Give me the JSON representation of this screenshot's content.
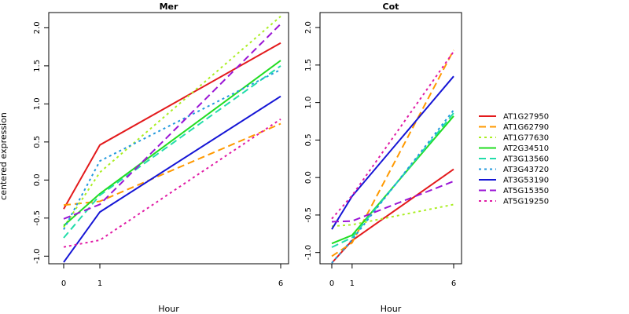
{
  "chart_data": {
    "type": "line",
    "ylabel": "centered expression",
    "legend_position": "right",
    "series_styles": [
      {
        "name": "AT1G27950",
        "color": "#e31a1c",
        "dash": "solid"
      },
      {
        "name": "AT1G62790",
        "color": "#ff9900",
        "dash": "dashed"
      },
      {
        "name": "AT1G77630",
        "color": "#aaee22",
        "dash": "dotted"
      },
      {
        "name": "AT2G34510",
        "color": "#22dd22",
        "dash": "solid"
      },
      {
        "name": "AT3G13560",
        "color": "#22ddaa",
        "dash": "dashed"
      },
      {
        "name": "AT3G43720",
        "color": "#2299dd",
        "dash": "dotted"
      },
      {
        "name": "AT3G53190",
        "color": "#1515d5",
        "dash": "solid"
      },
      {
        "name": "AT5G15350",
        "color": "#9a15d5",
        "dash": "dashed"
      },
      {
        "name": "AT5G19250",
        "color": "#e01aa5",
        "dash": "dotted"
      }
    ],
    "panels": [
      {
        "title": "Mer",
        "xlabel": "Hour",
        "categories": [
          "0",
          "1",
          "6"
        ],
        "ylim": [
          -1.1,
          2.2
        ],
        "yticks": [
          -1.0,
          -0.5,
          0.0,
          0.5,
          1.0,
          1.5,
          2.0
        ],
        "series": [
          {
            "name": "AT1G27950",
            "values": [
              -0.38,
              0.46,
              1.8
            ]
          },
          {
            "name": "AT1G62790",
            "values": [
              -0.33,
              -0.28,
              0.74
            ]
          },
          {
            "name": "AT1G77630",
            "values": [
              -0.62,
              0.1,
              2.15
            ]
          },
          {
            "name": "AT2G34510",
            "values": [
              -0.6,
              -0.18,
              1.57
            ]
          },
          {
            "name": "AT3G13560",
            "values": [
              -0.76,
              -0.2,
              1.5
            ]
          },
          {
            "name": "AT3G43720",
            "values": [
              -0.65,
              0.25,
              1.45
            ]
          },
          {
            "name": "AT3G53190",
            "values": [
              -1.08,
              -0.42,
              1.1
            ]
          },
          {
            "name": "AT5G15350",
            "values": [
              -0.51,
              -0.32,
              2.05
            ]
          },
          {
            "name": "AT5G19250",
            "values": [
              -0.88,
              -0.79,
              0.8
            ]
          }
        ]
      },
      {
        "title": "Cot",
        "xlabel": "Hour",
        "categories": [
          "0",
          "1",
          "6"
        ],
        "ylim": [
          -1.15,
          2.2
        ],
        "yticks": [
          -1.0,
          -0.5,
          0.0,
          0.5,
          1.0,
          1.5,
          2.0
        ],
        "series": [
          {
            "name": "AT1G27950",
            "values": [
              -1.14,
              -0.84,
              0.11
            ]
          },
          {
            "name": "AT1G62790",
            "values": [
              -1.05,
              -0.87,
              1.7
            ]
          },
          {
            "name": "AT1G77630",
            "values": [
              -0.65,
              -0.63,
              -0.36
            ]
          },
          {
            "name": "AT2G34510",
            "values": [
              -0.88,
              -0.77,
              0.82
            ]
          },
          {
            "name": "AT3G13560",
            "values": [
              -0.93,
              -0.8,
              0.86
            ]
          },
          {
            "name": "AT3G43720",
            "values": [
              -1.14,
              -0.83,
              0.9
            ]
          },
          {
            "name": "AT3G53190",
            "values": [
              -0.69,
              -0.25,
              1.35
            ]
          },
          {
            "name": "AT5G15350",
            "values": [
              -0.59,
              -0.58,
              -0.05
            ]
          },
          {
            "name": "AT5G19250",
            "values": [
              -0.55,
              -0.24,
              1.68
            ]
          }
        ]
      }
    ]
  }
}
